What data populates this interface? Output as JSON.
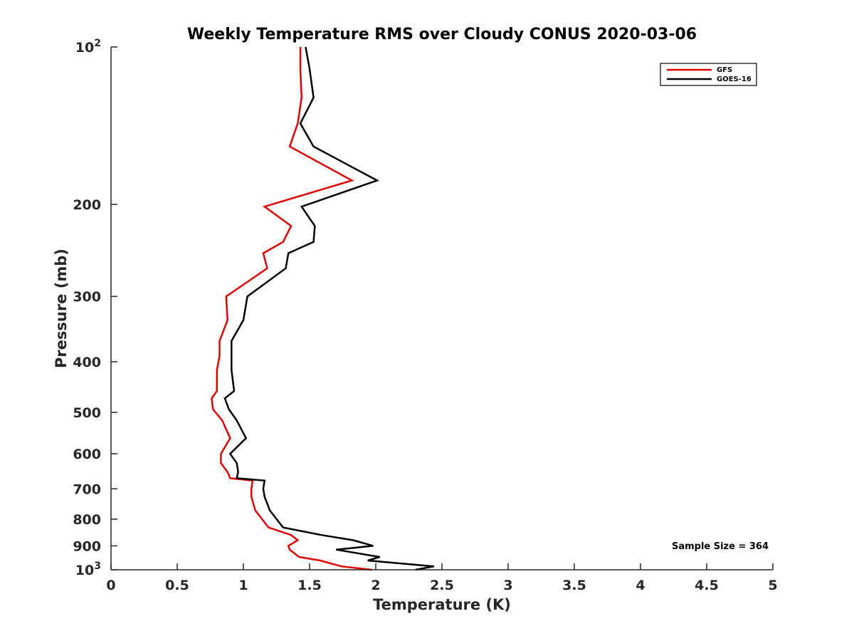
{
  "chart_data": {
    "type": "line",
    "title": "Weekly Temperature RMS over Cloudy CONUS 2020-03-06",
    "xlabel": "Temperature (K)",
    "ylabel": "Pressure (mb)",
    "xlim": [
      0,
      5
    ],
    "ylim": [
      100,
      1000
    ],
    "yscale": "log",
    "y_reversed": true,
    "grid": false,
    "legend_position": "top-right",
    "x_ticks": [
      {
        "value": 0,
        "label": "0"
      },
      {
        "value": 0.5,
        "label": "0.5"
      },
      {
        "value": 1,
        "label": "1"
      },
      {
        "value": 1.5,
        "label": "1.5"
      },
      {
        "value": 2,
        "label": "2"
      },
      {
        "value": 2.5,
        "label": "2.5"
      },
      {
        "value": 3,
        "label": "3"
      },
      {
        "value": 3.5,
        "label": "3.5"
      },
      {
        "value": 4,
        "label": "4"
      },
      {
        "value": 4.5,
        "label": "4.5"
      },
      {
        "value": 5,
        "label": "5"
      }
    ],
    "y_ticks": [
      {
        "value": 100,
        "base": "10",
        "exp": "2"
      },
      {
        "value": 200,
        "label": "200"
      },
      {
        "value": 300,
        "label": "300"
      },
      {
        "value": 400,
        "label": "400"
      },
      {
        "value": 500,
        "label": "500"
      },
      {
        "value": 600,
        "label": "600"
      },
      {
        "value": 700,
        "label": "700"
      },
      {
        "value": 800,
        "label": "800"
      },
      {
        "value": 900,
        "label": "900"
      },
      {
        "value": 1000,
        "base": "10",
        "exp": "3"
      }
    ],
    "annotation": "Sample Size = 364",
    "series": [
      {
        "name": "GFS",
        "color": "#e00000",
        "x": [
          1.43,
          1.43,
          1.44,
          1.41,
          1.35,
          1.82,
          1.16,
          1.36,
          1.3,
          1.15,
          1.18,
          0.87,
          0.88,
          0.82,
          0.82,
          0.8,
          0.8,
          0.76,
          0.77,
          0.84,
          0.9,
          0.83,
          0.83,
          0.88,
          0.9,
          1.07,
          1.06,
          1.06,
          1.09,
          1.19,
          1.36,
          1.41,
          1.34,
          1.35,
          1.42,
          1.58,
          1.74,
          1.97
        ],
        "y": [
          100,
          110,
          125,
          140,
          155,
          180,
          202,
          220,
          236,
          248,
          265,
          300,
          333,
          365,
          390,
          415,
          455,
          470,
          493,
          518,
          560,
          600,
          625,
          650,
          668,
          675,
          700,
          725,
          770,
          830,
          858,
          878,
          900,
          915,
          945,
          960,
          985,
          1000
        ]
      },
      {
        "name": "GOES-16",
        "color": "#000000",
        "x": [
          1.47,
          1.5,
          1.53,
          1.43,
          1.53,
          2.01,
          1.44,
          1.54,
          1.53,
          1.34,
          1.32,
          1.03,
          1.0,
          0.91,
          0.91,
          0.91,
          0.93,
          0.86,
          0.89,
          0.95,
          1.02,
          0.9,
          0.95,
          0.96,
          0.95,
          1.16,
          1.15,
          1.16,
          1.2,
          1.3,
          1.59,
          1.83,
          1.98,
          1.7,
          2.03,
          1.94,
          2.44,
          2.3
        ],
        "y": [
          100,
          110,
          125,
          140,
          155,
          180,
          202,
          220,
          236,
          248,
          265,
          300,
          333,
          365,
          390,
          415,
          455,
          470,
          493,
          518,
          560,
          600,
          625,
          650,
          668,
          675,
          700,
          725,
          770,
          830,
          858,
          878,
          900,
          915,
          945,
          960,
          985,
          1000
        ]
      }
    ]
  }
}
